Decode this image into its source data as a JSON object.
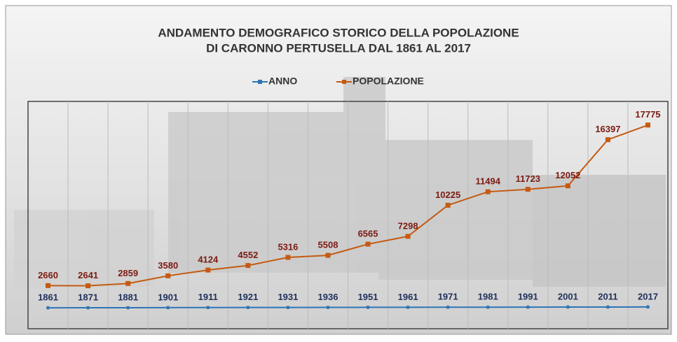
{
  "chart_data": {
    "type": "line",
    "title": [
      "ANDAMENTO DEMOGRAFICO STORICO DELLA POPOLAZIONE",
      "DI CARONNO PERTUSELLA DAL 1861 AL 2017"
    ],
    "series": [
      {
        "name": "ANNO",
        "color": "#2e75b6",
        "axis": "y2",
        "values": [
          1861,
          1871,
          1881,
          1901,
          1911,
          1921,
          1931,
          1936,
          1951,
          1961,
          1971,
          1981,
          1991,
          2001,
          2011,
          2017
        ]
      },
      {
        "name": "POPOLAZIONE",
        "color": "#c55a11",
        "values": [
          2660,
          2641,
          2859,
          3580,
          4124,
          4552,
          5316,
          5508,
          6565,
          7298,
          10225,
          11494,
          11723,
          12052,
          16397,
          17775
        ]
      }
    ],
    "ylim": [
      -1400,
      20000
    ],
    "y2lim": [
      -2000,
      40000
    ],
    "legend": "top"
  }
}
